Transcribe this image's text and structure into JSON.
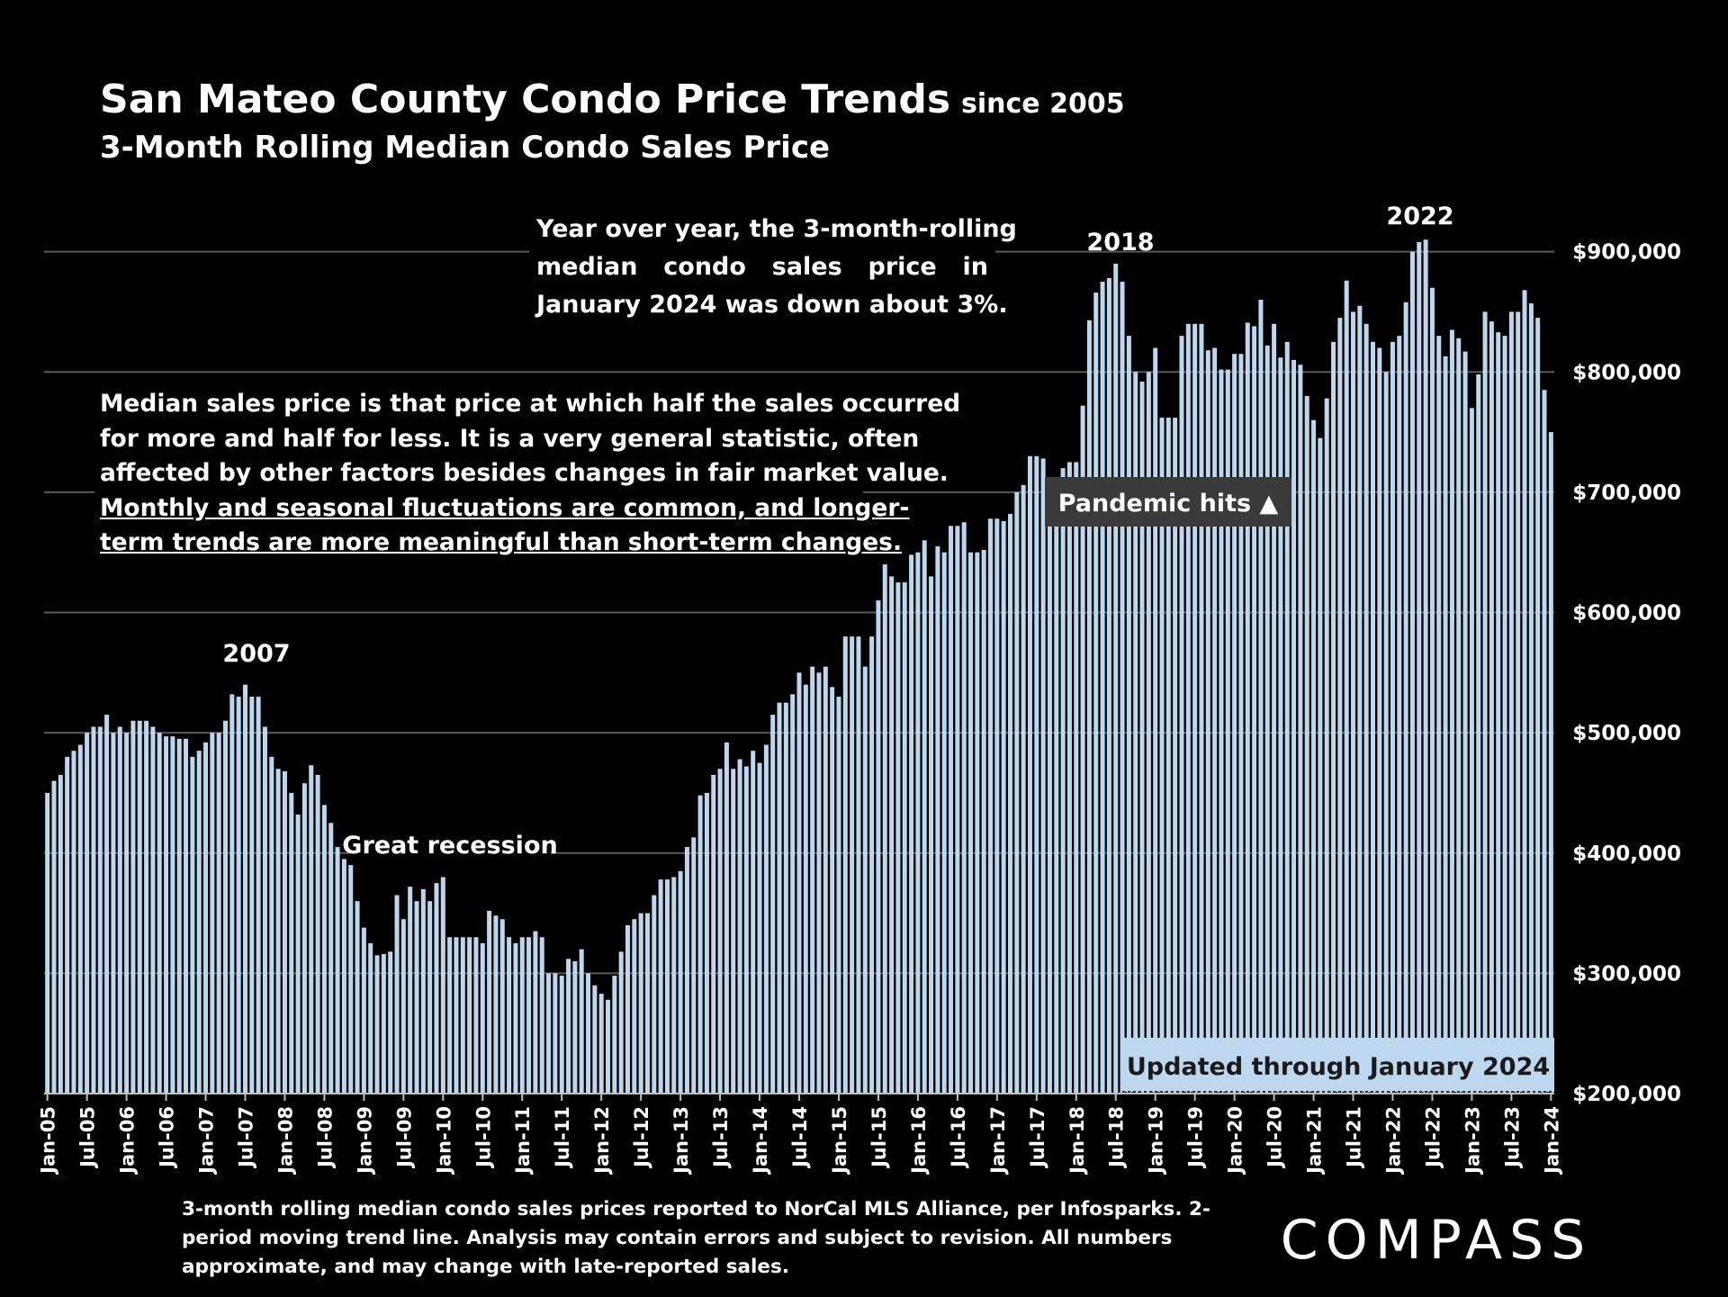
{
  "chart_data": {
    "type": "bar",
    "title": "San Mateo County Condo Price Trends",
    "title_suffix": "since 2005",
    "subtitle": "3-Month Rolling Median Condo Sales Price",
    "color": "#bdd7ee",
    "grid": true,
    "ylim": [
      200000,
      1000000
    ],
    "yticks": [
      {
        "value": 200000,
        "label": "$200,000"
      },
      {
        "value": 300000,
        "label": "$300,000"
      },
      {
        "value": 400000,
        "label": "$400,000"
      },
      {
        "value": 500000,
        "label": "$500,000"
      },
      {
        "value": 600000,
        "label": "$600,000"
      },
      {
        "value": 700000,
        "label": "$700,000"
      },
      {
        "value": 800000,
        "label": "$800,000"
      },
      {
        "value": 900000,
        "label": "$900,000"
      }
    ],
    "categories": [
      "Jan-05",
      null,
      null,
      null,
      null,
      null,
      "Jul-05",
      null,
      null,
      null,
      null,
      null,
      "Jan-06",
      null,
      null,
      null,
      null,
      null,
      "Jul-06",
      null,
      null,
      null,
      null,
      null,
      "Jan-07",
      null,
      null,
      null,
      null,
      null,
      "Jul-07",
      null,
      null,
      null,
      null,
      null,
      "Jan-08",
      null,
      null,
      null,
      null,
      null,
      "Jul-08",
      null,
      null,
      null,
      null,
      null,
      "Jan-09",
      null,
      null,
      null,
      null,
      null,
      "Jul-09",
      null,
      null,
      null,
      null,
      null,
      "Jan-10",
      null,
      null,
      null,
      null,
      null,
      "Jul-10",
      null,
      null,
      null,
      null,
      null,
      "Jan-11",
      null,
      null,
      null,
      null,
      null,
      "Jul-11",
      null,
      null,
      null,
      null,
      null,
      "Jan-12",
      null,
      null,
      null,
      null,
      null,
      "Jul-12",
      null,
      null,
      null,
      null,
      null,
      "Jan-13",
      null,
      null,
      null,
      null,
      null,
      "Jul-13",
      null,
      null,
      null,
      null,
      null,
      "Jan-14",
      null,
      null,
      null,
      null,
      null,
      "Jul-14",
      null,
      null,
      null,
      null,
      null,
      "Jan-15",
      null,
      null,
      null,
      null,
      null,
      "Jul-15",
      null,
      null,
      null,
      null,
      null,
      "Jan-16",
      null,
      null,
      null,
      null,
      null,
      "Jul-16",
      null,
      null,
      null,
      null,
      null,
      "Jan-17",
      null,
      null,
      null,
      null,
      null,
      "Jul-17",
      null,
      null,
      null,
      null,
      null,
      "Jan-18",
      null,
      null,
      null,
      null,
      null,
      "Jul-18",
      null,
      null,
      null,
      null,
      null,
      "Jan-19",
      null,
      null,
      null,
      null,
      null,
      "Jul-19",
      null,
      null,
      null,
      null,
      null,
      "Jan-20",
      null,
      null,
      null,
      null,
      null,
      "Jul-20",
      null,
      null,
      null,
      null,
      null,
      "Jan-21",
      null,
      null,
      null,
      null,
      null,
      "Jul-21",
      null,
      null,
      null,
      null,
      null,
      "Jan-22",
      null,
      null,
      null,
      null,
      null,
      "Jul-22",
      null,
      null,
      null,
      null,
      null,
      "Jan-23",
      null,
      null,
      null,
      null,
      null,
      "Jul-23",
      null,
      null,
      null,
      null,
      null,
      "Jan-24"
    ],
    "values": [
      450000,
      460000,
      465000,
      480000,
      485000,
      490000,
      500000,
      505000,
      505000,
      515000,
      500000,
      505000,
      500000,
      510000,
      510000,
      510000,
      505000,
      500000,
      497000,
      497000,
      495000,
      495000,
      480000,
      485000,
      492000,
      500000,
      500000,
      510000,
      532000,
      530000,
      540000,
      530000,
      530000,
      505000,
      480000,
      470000,
      468000,
      450000,
      432000,
      458000,
      473000,
      465000,
      440000,
      425000,
      405000,
      395000,
      390000,
      360000,
      338000,
      325000,
      315000,
      316000,
      318000,
      365000,
      345000,
      372000,
      360000,
      370000,
      360000,
      375000,
      380000,
      330000,
      330000,
      330000,
      330000,
      330000,
      325000,
      352000,
      348000,
      345000,
      330000,
      325000,
      330000,
      330000,
      335000,
      330000,
      300000,
      300000,
      298000,
      312000,
      310000,
      320000,
      300000,
      290000,
      283000,
      278000,
      298000,
      318000,
      340000,
      345000,
      350000,
      350000,
      365000,
      378000,
      378000,
      380000,
      385000,
      405000,
      413000,
      448000,
      450000,
      465000,
      470000,
      492000,
      470000,
      478000,
      472000,
      485000,
      475000,
      490000,
      515000,
      525000,
      525000,
      532000,
      550000,
      540000,
      555000,
      550000,
      555000,
      538000,
      530000,
      580000,
      580000,
      580000,
      555000,
      580000,
      610000,
      640000,
      630000,
      625000,
      625000,
      648000,
      650000,
      660000,
      630000,
      655000,
      650000,
      672000,
      672000,
      675000,
      650000,
      650000,
      652000,
      678000,
      678000,
      676000,
      682000,
      700000,
      706000,
      730000,
      730000,
      728000,
      700000,
      700000,
      720000,
      725000,
      725000,
      772000,
      843000,
      866000,
      875000,
      878000,
      890000,
      875000,
      830000,
      800000,
      792000,
      800000,
      820000,
      762000,
      762000,
      762000,
      830000,
      840000,
      840000,
      840000,
      818000,
      820000,
      802000,
      802000,
      815000,
      815000,
      841000,
      838000,
      860000,
      822000,
      840000,
      812000,
      825000,
      810000,
      806000,
      780000,
      760000,
      745000,
      778000,
      825000,
      845000,
      876000,
      850000,
      855000,
      840000,
      825000,
      820000,
      800000,
      825000,
      830000,
      858000,
      900000,
      908000,
      910000,
      870000,
      830000,
      813000,
      835000,
      828000,
      817000,
      770000,
      798000,
      850000,
      842000,
      833000,
      830000,
      850000,
      850000,
      868000,
      857000,
      845000,
      785000,
      750000
    ],
    "annotations": {
      "y2007": "2007",
      "recession": "Great recession",
      "y2018": "2018",
      "y2022": "2022",
      "pandemic": "Pandemic hits ▲",
      "updated": "Updated through January 2024"
    },
    "yoy_note": [
      "Year over year, the 3-month-rolling",
      "median condo sales price in",
      "January 2024 was down about 3%."
    ],
    "median_note": [
      "Median sales price is that price at which half the sales occurred",
      "for more and half for less. It is a very general statistic, often",
      "affected by other factors besides changes in fair market value."
    ],
    "median_note_underlined": [
      "Monthly and seasonal fluctuations are common, and longer-",
      "term trends are more meaningful than short-term changes."
    ],
    "footnote": [
      "3-month rolling median condo sales prices reported to NorCal MLS Alliance, per Infosparks. 2-",
      "period moving trend line. Analysis may contain errors and subject to revision. All numbers",
      "approximate, and may change with late-reported sales."
    ],
    "brand": "COMPASS"
  }
}
